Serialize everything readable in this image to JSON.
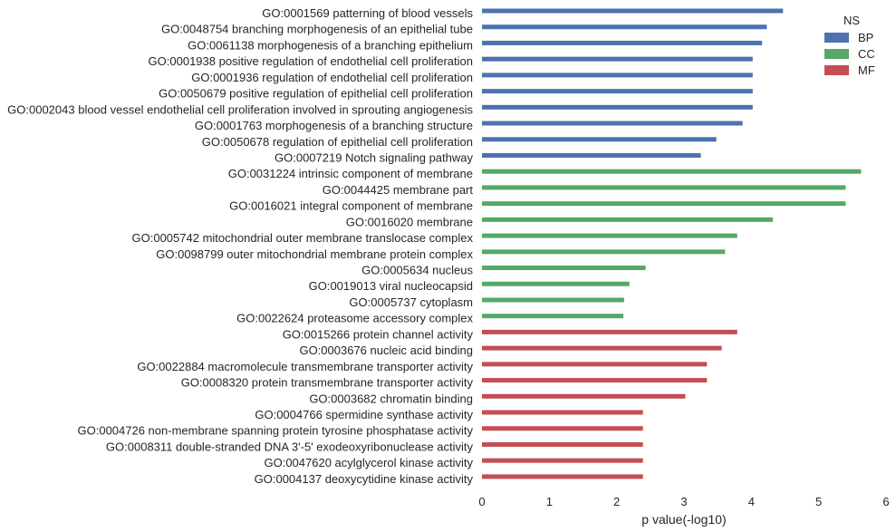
{
  "chart_data": {
    "type": "bar",
    "orientation": "horizontal",
    "xlabel": "p value(-log10)",
    "xlim": [
      0,
      6
    ],
    "x_ticks": [
      "0",
      "1",
      "2",
      "3",
      "4",
      "5",
      "6"
    ],
    "grid": false,
    "legend": {
      "title": "NS",
      "placement": "top-right",
      "entries": [
        {
          "name": "BP",
          "color": "#4c72b0"
        },
        {
          "name": "CC",
          "color": "#55a868"
        },
        {
          "name": "MF",
          "color": "#c44e52"
        }
      ]
    },
    "categories": [
      "GO:0001569 patterning of blood vessels",
      "GO:0048754 branching morphogenesis of an epithelial tube",
      "GO:0061138 morphogenesis of a branching epithelium",
      "GO:0001938 positive regulation of endothelial cell proliferation",
      "GO:0001936 regulation of endothelial cell proliferation",
      "GO:0050679 positive regulation of epithelial cell proliferation",
      "GO:0002043 blood vessel endothelial cell proliferation involved in sprouting angiogenesis",
      "GO:0001763 morphogenesis of a branching structure",
      "GO:0050678 regulation of epithelial cell proliferation",
      "GO:0007219 Notch signaling pathway",
      "GO:0031224 intrinsic component of membrane",
      "GO:0044425 membrane part",
      "GO:0016021 integral component of membrane",
      "GO:0016020 membrane",
      "GO:0005742 mitochondrial outer membrane translocase complex",
      "GO:0098799 outer mitochondrial membrane protein complex",
      "GO:0005634 nucleus",
      "GO:0019013 viral nucleocapsid",
      "GO:0005737 cytoplasm",
      "GO:0022624 proteasome accessory complex",
      "GO:0015266 protein channel activity",
      "GO:0003676 nucleic acid binding",
      "GO:0022884 macromolecule transmembrane transporter activity",
      "GO:0008320 protein transmembrane transporter activity",
      "GO:0003682 chromatin binding",
      "GO:0004766 spermidine synthase activity",
      "GO:0004726 non-membrane spanning protein tyrosine phosphatase activity",
      "GO:0008311 double-stranded DNA 3'-5' exodeoxyribonuclease activity",
      "GO:0047620 acylglycerol kinase activity",
      "GO:0004137 deoxycytidine kinase activity"
    ],
    "values": [
      4.47,
      4.23,
      4.16,
      4.02,
      4.02,
      4.02,
      4.02,
      3.87,
      3.48,
      3.25,
      5.63,
      5.4,
      5.4,
      4.32,
      3.79,
      3.61,
      2.43,
      2.19,
      2.11,
      2.1,
      3.79,
      3.56,
      3.34,
      3.34,
      3.02,
      2.39,
      2.39,
      2.39,
      2.39,
      2.39
    ],
    "groups": [
      "BP",
      "BP",
      "BP",
      "BP",
      "BP",
      "BP",
      "BP",
      "BP",
      "BP",
      "BP",
      "CC",
      "CC",
      "CC",
      "CC",
      "CC",
      "CC",
      "CC",
      "CC",
      "CC",
      "CC",
      "MF",
      "MF",
      "MF",
      "MF",
      "MF",
      "MF",
      "MF",
      "MF",
      "MF",
      "MF"
    ]
  }
}
